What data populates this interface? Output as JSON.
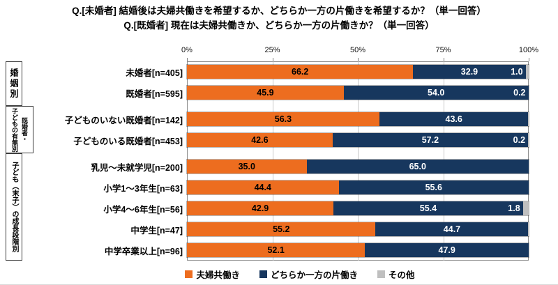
{
  "title": {
    "line1": "Q.[未婚者] 結婚後は夫婦共働きを希望するか、どちらか一方の片働きを希望するか？（単一回答）",
    "line2": "Q.[既婚者] 現在は夫婦共働きか、どちらか一方の片働きか？（単一回答）"
  },
  "chart_data": {
    "type": "bar",
    "orientation": "horizontal",
    "stacked": true,
    "unit": "%",
    "xlim": [
      0,
      100
    ],
    "x_ticks": [
      "0%",
      "25%",
      "50%",
      "75%",
      "100%"
    ],
    "grid": true,
    "legend_position": "bottom",
    "series": [
      {
        "name": "夫婦共働き",
        "color": "#ED6D1F"
      },
      {
        "name": "どちらか一方の片働き",
        "color": "#17375E"
      },
      {
        "name": "その他",
        "color": "#BFBFBF"
      }
    ],
    "groups": [
      {
        "label": "婚姻別",
        "label_lines": [
          "婚姻別"
        ],
        "rows": [
          {
            "category": "未婚者[n=405]",
            "values": [
              66.2,
              32.9,
              1.0
            ],
            "value_labels": [
              "66.2",
              "32.9",
              "1.0"
            ]
          },
          {
            "category": "既婚者[n=595]",
            "values": [
              45.9,
              54.0,
              0.2
            ],
            "value_labels": [
              "45.9",
              "54.0",
              "0.2"
            ]
          }
        ]
      },
      {
        "label": "既婚者・子どもの有無別",
        "label_lines": [
          "既婚者・",
          "子どもの有無別"
        ],
        "rows": [
          {
            "category": "子どものいない既婚者[n=142]",
            "values": [
              56.3,
              43.6,
              0.1
            ],
            "value_labels": [
              "56.3",
              "43.6",
              ""
            ]
          },
          {
            "category": "子どものいる既婚者[n=453]",
            "values": [
              42.6,
              57.2,
              0.2
            ],
            "value_labels": [
              "42.6",
              "57.2",
              "0.2"
            ]
          }
        ]
      },
      {
        "label": "子ども（末子）の成長段階別",
        "label_lines": [
          "子ども（末子）の成長段階別"
        ],
        "rows": [
          {
            "category": "乳児～未就学児[n=200]",
            "values": [
              35.0,
              65.0,
              0.0
            ],
            "value_labels": [
              "35.0",
              "65.0",
              ""
            ]
          },
          {
            "category": "小学1～3年生[n=63]",
            "values": [
              44.4,
              55.6,
              0.0
            ],
            "value_labels": [
              "44.4",
              "55.6",
              ""
            ]
          },
          {
            "category": "小学4～6年生[n=56]",
            "values": [
              42.9,
              55.4,
              1.8
            ],
            "value_labels": [
              "42.9",
              "55.4",
              "1.8"
            ]
          },
          {
            "category": "中学生[n=47]",
            "values": [
              55.2,
              44.7,
              0.1
            ],
            "value_labels": [
              "55.2",
              "44.7",
              ""
            ]
          },
          {
            "category": "中学卒業以上[n=96]",
            "values": [
              52.1,
              47.9,
              0.0
            ],
            "value_labels": [
              "52.1",
              "47.9",
              ""
            ]
          }
        ]
      }
    ]
  }
}
